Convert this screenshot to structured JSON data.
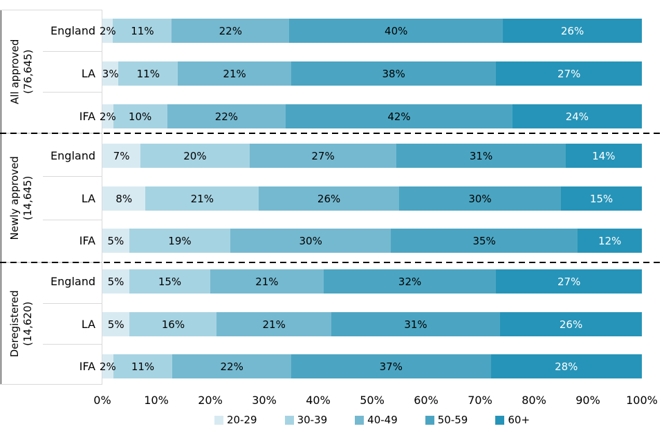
{
  "chart_data": {
    "type": "bar",
    "variant": "stacked-horizontal-100pct",
    "unit": "%",
    "age_bands": [
      "20-29",
      "30-39",
      "40-49",
      "50-59",
      "60+"
    ],
    "colors": {
      "band_20_29": "#d8eaf1",
      "band_30_39": "#a6d3e2",
      "band_40_49": "#75b9d0",
      "band_50_59": "#4ba5c2",
      "band_60_plus": "#2694b8",
      "label_on_dark": "#ffffff",
      "label_on_light": "#000000",
      "category_box_border": "#d9d9d9",
      "axis_line": "#3a3a3a",
      "divider": "#000000"
    },
    "groups": [
      {
        "label": "All approved",
        "count": "(76,645)",
        "rows": [
          {
            "label": "England",
            "values": [
              2,
              11,
              22,
              40,
              26
            ]
          },
          {
            "label": "LA",
            "values": [
              3,
              11,
              21,
              38,
              27
            ]
          },
          {
            "label": "IFA",
            "values": [
              2,
              10,
              22,
              42,
              24
            ]
          }
        ]
      },
      {
        "label": "Newly approved",
        "count": "(14,645)",
        "rows": [
          {
            "label": "England",
            "values": [
              7,
              20,
              27,
              31,
              14
            ]
          },
          {
            "label": "LA",
            "values": [
              8,
              21,
              26,
              30,
              15
            ]
          },
          {
            "label": "IFA",
            "values": [
              5,
              19,
              30,
              35,
              12
            ]
          }
        ]
      },
      {
        "label": "Deregistered",
        "count": "(14,620)",
        "rows": [
          {
            "label": "England",
            "values": [
              5,
              15,
              21,
              32,
              27
            ]
          },
          {
            "label": "LA",
            "values": [
              5,
              16,
              21,
              31,
              26
            ]
          },
          {
            "label": "IFA",
            "values": [
              2,
              11,
              22,
              37,
              28
            ]
          }
        ]
      }
    ],
    "x_axis": {
      "min": 0,
      "max": 100,
      "ticks": [
        "0%",
        "10%",
        "20%",
        "30%",
        "40%",
        "50%",
        "60%",
        "70%",
        "80%",
        "90%",
        "100%"
      ]
    },
    "legend": {
      "position": "bottom-center",
      "items": [
        "20-29",
        "30-39",
        "40-49",
        "50-59",
        "60+"
      ]
    },
    "grid": false,
    "title": ""
  }
}
